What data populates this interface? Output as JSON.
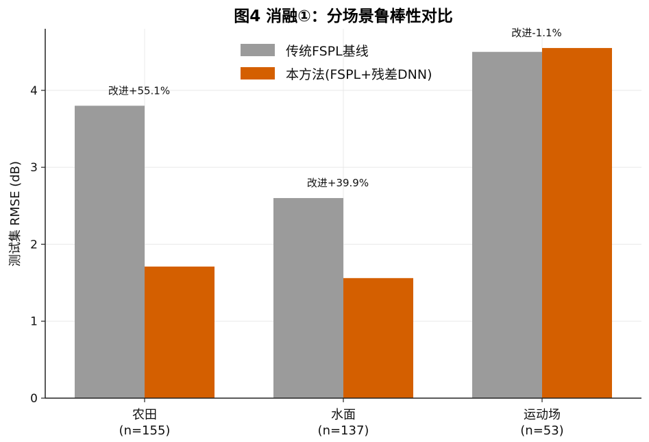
{
  "chart_data": {
    "type": "bar",
    "title": "图4 消融①：分场景鲁棒性对比",
    "ylabel": "测试集 RMSE (dB)",
    "xlabel": "",
    "ylim": [
      0,
      4.8
    ],
    "yticks": [
      0,
      1,
      2,
      3,
      4
    ],
    "categories": [
      "农田",
      "水面",
      "运动场"
    ],
    "category_counts": [
      "(n=155)",
      "(n=137)",
      "(n=53)"
    ],
    "series": [
      {
        "name": "传统FSPL基线",
        "color": "#9b9b9b",
        "values": [
          3.8,
          2.6,
          4.5
        ]
      },
      {
        "name": "本方法(FSPL+残差DNN)",
        "color": "#d45f00",
        "values": [
          1.71,
          1.56,
          4.55
        ]
      }
    ],
    "annotations": [
      "改进+55.1%",
      "改进+39.9%",
      "改进-1.1%"
    ],
    "grid": true,
    "legend_position": "top-center"
  }
}
